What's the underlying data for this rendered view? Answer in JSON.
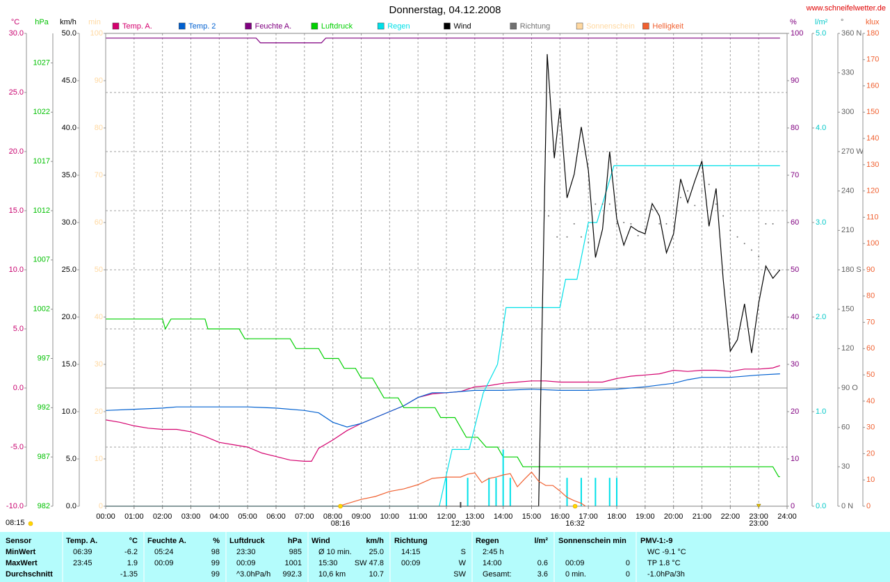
{
  "chart_data": {
    "type": "line",
    "title": "Donnerstag, 04.12.2008",
    "source": "www.schneifelwetter.de",
    "xlim": [
      0,
      24
    ],
    "xticks": [
      {
        "value": 0,
        "label": "00:00"
      },
      {
        "value": 1,
        "label": "01:00"
      },
      {
        "value": 2,
        "label": "02:00"
      },
      {
        "value": 3,
        "label": "03:00"
      },
      {
        "value": 4,
        "label": "04:00"
      },
      {
        "value": 5,
        "label": "05:00"
      },
      {
        "value": 6,
        "label": "06:00"
      },
      {
        "value": 7,
        "label": "07:00"
      },
      {
        "value": 8,
        "label": "08:00"
      },
      {
        "value": 9,
        "label": "09:00"
      },
      {
        "value": 10,
        "label": "10:00"
      },
      {
        "value": 11,
        "label": "11:00"
      },
      {
        "value": 12,
        "label": "12:00"
      },
      {
        "value": 13,
        "label": "13:00"
      },
      {
        "value": 14,
        "label": "14:00"
      },
      {
        "value": 15,
        "label": "15:00"
      },
      {
        "value": 16,
        "label": "16:00"
      },
      {
        "value": 17,
        "label": "17:00"
      },
      {
        "value": 18,
        "label": "18:00"
      },
      {
        "value": 19,
        "label": "19:00"
      },
      {
        "value": 20,
        "label": "20:00"
      },
      {
        "value": 21,
        "label": "21:00"
      },
      {
        "value": 22,
        "label": "22:00"
      },
      {
        "value": 23,
        "label": "23:00"
      },
      {
        "value": 24,
        "label": "24:00"
      }
    ],
    "grid": true,
    "grid_axis": "temp",
    "zero_line": true,
    "axes": [
      {
        "id": "temp",
        "side": "left",
        "title": "°C",
        "color": "#c8006e",
        "lim": [
          -10,
          30
        ],
        "ticks": [
          {
            "value": -10,
            "label": "-10.0"
          },
          {
            "value": -5,
            "label": "-5.0"
          },
          {
            "value": 0,
            "label": "0.0"
          },
          {
            "value": 5,
            "label": "5.0"
          },
          {
            "value": 10,
            "label": "10.0"
          },
          {
            "value": 15,
            "label": "15.0"
          },
          {
            "value": 20,
            "label": "20.0"
          },
          {
            "value": 25,
            "label": "25.0"
          },
          {
            "value": 30,
            "label": "30.0"
          }
        ]
      },
      {
        "id": "pressure",
        "side": "left",
        "title": "hPa",
        "color": "#00c000",
        "lim": [
          982,
          1030
        ],
        "ticks": [
          982,
          987,
          992,
          997,
          1002,
          1007,
          1012,
          1017,
          1022,
          1027
        ]
      },
      {
        "id": "wind",
        "side": "left",
        "title": "km/h",
        "color": "#000000",
        "lim": [
          0,
          50
        ],
        "ticks": [
          {
            "value": 0,
            "label": "0.0"
          },
          {
            "value": 5,
            "label": "5.0"
          },
          {
            "value": 10,
            "label": "10.0"
          },
          {
            "value": 15,
            "label": "15.0"
          },
          {
            "value": 20,
            "label": "20.0"
          },
          {
            "value": 25,
            "label": "25.0"
          },
          {
            "value": 30,
            "label": "30.0"
          },
          {
            "value": 35,
            "label": "35.0"
          },
          {
            "value": 40,
            "label": "40.0"
          },
          {
            "value": 45,
            "label": "45.0"
          },
          {
            "value": 50,
            "label": "50.0"
          }
        ]
      },
      {
        "id": "sun",
        "side": "left",
        "title": "min",
        "color": "#ffd8a0",
        "lim": [
          0,
          100
        ],
        "ticks": [
          0,
          10,
          20,
          30,
          40,
          50,
          60,
          70,
          80,
          90,
          100
        ]
      },
      {
        "id": "humidity",
        "side": "right",
        "title": "%",
        "color": "#800080",
        "lim": [
          0,
          100
        ],
        "ticks": [
          0,
          10,
          20,
          30,
          40,
          50,
          60,
          70,
          80,
          90,
          100
        ]
      },
      {
        "id": "rain",
        "side": "right",
        "title": "l/m²",
        "color": "#00c8c8",
        "lim": [
          0,
          5
        ],
        "ticks": [
          {
            "value": 0,
            "label": "0.0"
          },
          {
            "value": 1,
            "label": "1.0"
          },
          {
            "value": 2,
            "label": "2.0"
          },
          {
            "value": 3,
            "label": "3.0"
          },
          {
            "value": 4,
            "label": "4.0"
          },
          {
            "value": 5,
            "label": "5.0"
          }
        ]
      },
      {
        "id": "direction",
        "side": "right",
        "title": "°",
        "color": "#606060",
        "lim": [
          0,
          360
        ],
        "ticks": [
          {
            "value": 0,
            "label": "0 N"
          },
          30,
          60,
          {
            "value": 90,
            "label": "90 O"
          },
          120,
          150,
          {
            "value": 180,
            "label": "180 S"
          },
          210,
          240,
          {
            "value": 270,
            "label": "270 W"
          },
          300,
          330,
          {
            "value": 360,
            "label": "360 N"
          }
        ]
      },
      {
        "id": "light",
        "side": "right",
        "title": "klux",
        "color": "#f06030",
        "lim": [
          0,
          180
        ],
        "ticks": [
          0,
          10,
          20,
          30,
          40,
          50,
          60,
          70,
          80,
          90,
          100,
          110,
          120,
          130,
          140,
          150,
          160,
          170,
          180
        ]
      }
    ],
    "series": [
      {
        "name": "Temp. A.",
        "color": "#d4006e",
        "axis": "temp",
        "style": "line",
        "x": [
          0,
          0.5,
          1,
          1.5,
          2,
          2.5,
          3,
          3.5,
          4,
          4.5,
          5,
          5.5,
          6,
          6.5,
          7,
          7.25,
          7.5,
          8,
          8.5,
          9,
          9.5,
          10,
          10.5,
          11,
          11.5,
          12,
          12.5,
          13,
          13.5,
          14,
          14.5,
          15,
          15.5,
          16,
          16.5,
          17,
          17.5,
          18,
          18.5,
          19,
          19.5,
          20,
          20.5,
          21,
          21.5,
          22,
          22.5,
          23,
          23.5,
          23.75
        ],
        "values": [
          -2.7,
          -2.9,
          -3.2,
          -3.4,
          -3.5,
          -3.5,
          -3.7,
          -4.1,
          -4.6,
          -4.8,
          -5.0,
          -5.5,
          -5.8,
          -6.1,
          -6.2,
          -6.2,
          -5.1,
          -4.4,
          -3.6,
          -3.0,
          -2.5,
          -2.0,
          -1.5,
          -0.8,
          -0.5,
          -0.4,
          -0.3,
          0.1,
          0.2,
          0.4,
          0.5,
          0.6,
          0.6,
          0.5,
          0.5,
          0.5,
          0.5,
          0.8,
          1.0,
          1.1,
          1.2,
          1.5,
          1.4,
          1.5,
          1.5,
          1.4,
          1.6,
          1.6,
          1.7,
          1.9
        ]
      },
      {
        "name": "Temp. 2",
        "color": "#0060d0",
        "axis": "temp",
        "style": "line",
        "x": [
          0,
          1,
          2,
          2.5,
          3,
          4,
          5,
          6,
          7,
          7.5,
          8,
          8.5,
          9,
          9.5,
          10,
          10.5,
          11,
          11.5,
          12,
          13,
          14,
          15,
          16,
          17,
          18,
          19,
          20,
          20.5,
          21,
          22,
          23,
          23.75
        ],
        "values": [
          -1.9,
          -1.8,
          -1.7,
          -1.6,
          -1.6,
          -1.6,
          -1.6,
          -1.7,
          -1.9,
          -2.1,
          -2.9,
          -3.3,
          -3.0,
          -2.5,
          -2.0,
          -1.5,
          -0.8,
          -0.4,
          -0.4,
          -0.2,
          -0.2,
          -0.1,
          -0.2,
          -0.2,
          -0.1,
          0.1,
          0.4,
          0.7,
          0.9,
          0.9,
          1.1,
          1.2
        ]
      },
      {
        "name": "Feuchte A.",
        "color": "#800080",
        "axis": "humidity",
        "style": "line",
        "x": [
          0,
          5.3,
          5.45,
          7.6,
          7.75,
          23.75
        ],
        "values": [
          99,
          99,
          98,
          98,
          99,
          99
        ]
      },
      {
        "name": "Luftdruck",
        "color": "#00d000",
        "axis": "pressure",
        "style": "line",
        "x": [
          0,
          2,
          2.1,
          2.3,
          3.5,
          3.6,
          4.7,
          4.9,
          6.5,
          6.7,
          7.5,
          7.7,
          8.2,
          8.4,
          8.8,
          9,
          9.4,
          9.8,
          10.3,
          10.5,
          11.6,
          11.8,
          12.3,
          12.7,
          13.1,
          13.4,
          13.8,
          14,
          14.5,
          14.7,
          23.5,
          23.7,
          23.75
        ],
        "values": [
          1001,
          1001,
          1000,
          1001,
          1001,
          1000,
          1000,
          999,
          999,
          998,
          998,
          997,
          997,
          996,
          996,
          995,
          995,
          993,
          993,
          992,
          992,
          991,
          991,
          989,
          989,
          988,
          988,
          987,
          987,
          986,
          986,
          985,
          985
        ]
      },
      {
        "name": "Regen",
        "color": "#00e0e8",
        "axis": "rain",
        "style": "line",
        "x": [
          0,
          11.75,
          12.2,
          12.8,
          13.3,
          13.8,
          14.1,
          16.0,
          16.2,
          16.6,
          16.8,
          17.0,
          17.3,
          17.6,
          17.9,
          23.75
        ],
        "values": [
          0,
          0,
          0.6,
          0.6,
          1.2,
          1.5,
          2.1,
          2.1,
          2.4,
          2.4,
          2.7,
          3.0,
          3.0,
          3.3,
          3.6,
          3.6
        ],
        "rates": {
          "x": [
            12,
            12.75,
            13.5,
            13.75,
            14,
            14.25,
            16.25,
            16.75,
            17.25,
            17.75,
            18
          ],
          "values": [
            0.3,
            0.3,
            0.3,
            0.3,
            0.6,
            0.3,
            0.3,
            0.3,
            0.3,
            0.3,
            0.3
          ]
        }
      },
      {
        "name": "Wind",
        "color": "#000000",
        "axis": "wind",
        "style": "line",
        "x": [
          0,
          15.25,
          15.55,
          15.8,
          16,
          16.25,
          16.5,
          16.75,
          17,
          17.25,
          17.5,
          17.75,
          18,
          18.25,
          18.5,
          18.75,
          19,
          19.25,
          19.5,
          19.75,
          20,
          20.25,
          20.5,
          20.75,
          21,
          21.25,
          21.5,
          21.75,
          22,
          22.25,
          22.5,
          22.75,
          23,
          23.25,
          23.5,
          23.75
        ],
        "values": [
          0,
          0,
          47.8,
          36.8,
          42.1,
          32.6,
          35.1,
          40.1,
          35.5,
          26.3,
          29.3,
          37.5,
          30.4,
          27.6,
          29.6,
          29.1,
          28.8,
          32.0,
          30.7,
          26.8,
          28.8,
          34.6,
          32.1,
          34.4,
          36.5,
          29.6,
          33.6,
          24.0,
          16.4,
          17.6,
          21.4,
          16.2,
          21.5,
          25.4,
          24.1,
          25.0
        ]
      },
      {
        "name": "Richtung",
        "color": "#707070",
        "axis": "direction",
        "style": "dots",
        "x": [
          15.6,
          15.9,
          16.25,
          16.5,
          16.75,
          17,
          17.25,
          17.5,
          17.75,
          18,
          18.25,
          18.5,
          18.75,
          19,
          19.25,
          19.5,
          19.75,
          20.25,
          20.5,
          20.75,
          21,
          21.25,
          21.5,
          21.75,
          22,
          22.25,
          22.5,
          22.75,
          23,
          23.25,
          23.5
        ],
        "values": [
          221,
          205,
          205,
          215,
          205,
          201,
          230,
          230,
          230,
          215,
          216,
          215,
          206,
          211,
          226,
          215,
          215,
          235,
          240,
          229,
          240,
          245,
          230,
          221,
          210,
          205,
          200,
          195,
          190,
          215,
          215
        ]
      },
      {
        "name": "Sonnenschein",
        "color": "#ffd8a0",
        "axis": "sun",
        "style": "line",
        "x": [],
        "values": []
      },
      {
        "name": "Helligkeit",
        "color": "#f06030",
        "axis": "light",
        "style": "line",
        "x": [
          8.2,
          8.6,
          9,
          9.5,
          10,
          10.5,
          11,
          11.5,
          12,
          12.5,
          12.75,
          13,
          13.25,
          13.5,
          13.75,
          14,
          14.25,
          14.5,
          14.75,
          15,
          15.25,
          15.5,
          15.75,
          16,
          16.25,
          16.5,
          16.75,
          16.9
        ],
        "values": [
          0,
          1.3,
          2.6,
          3.7,
          5.6,
          6.6,
          8.2,
          10.6,
          11.1,
          11.1,
          12.2,
          12.7,
          9.0,
          10.6,
          11.1,
          11.9,
          12.4,
          7.4,
          10.3,
          13.0,
          9.5,
          7.9,
          7.9,
          5.8,
          3.4,
          2.1,
          1.1,
          0
        ]
      }
    ],
    "events": [
      {
        "label": "08:16",
        "x": 8.267,
        "icon": "sun"
      },
      {
        "label": "12:30",
        "x": 12.5,
        "icon": "noon"
      },
      {
        "label": "16:32",
        "x": 16.533,
        "icon": "sun"
      },
      {
        "label": "23:00",
        "x": 23,
        "icon": "moon"
      }
    ],
    "corner_note": {
      "label": "08:15",
      "icon": "sun"
    }
  },
  "stats_table": {
    "corner": "Sensor",
    "columns": [
      {
        "title": "Temp. A.",
        "unit": "°C"
      },
      {
        "title": "Feuchte A.",
        "unit": "%"
      },
      {
        "title": "Luftdruck",
        "unit": "hPa"
      },
      {
        "title": "Wind",
        "unit": "km/h"
      },
      {
        "title": "Richtung"
      },
      {
        "title": "Regen",
        "unit": "l/m²"
      },
      {
        "title": "Sonnenschein min"
      },
      {
        "title": "PMV-1:-9"
      }
    ],
    "rows": [
      {
        "label": "MinWert",
        "cells": [
          {
            "left": "06:39",
            "right": "-6.2"
          },
          {
            "left": "05:24",
            "right": "98"
          },
          {
            "left": "23:30",
            "right": "985"
          },
          {
            "left": "Ø 10 min.",
            "right": "25.0"
          },
          {
            "left": "14:15",
            "right": "S"
          },
          {
            "left": "2:45 h"
          },
          {},
          {
            "left": "WC -9.1 °C"
          }
        ]
      },
      {
        "label": "MaxWert",
        "cells": [
          {
            "left": "23:45",
            "right": "1.9"
          },
          {
            "left": "00:09",
            "right": "99"
          },
          {
            "left": "00:09",
            "right": "1001"
          },
          {
            "left": "15:30",
            "right": "SW 47.8"
          },
          {
            "left": "00:09",
            "right": "W"
          },
          {
            "left": "14:00",
            "right": "0.6"
          },
          {
            "left": "00:09",
            "right": "0"
          },
          {
            "left": "TP 1.8 °C"
          }
        ]
      },
      {
        "label": "Durchschnitt",
        "cells": [
          {
            "right": "-1.35"
          },
          {
            "right": "99"
          },
          {
            "left": "^3.0hPa/h",
            "right": "992.3"
          },
          {
            "left": "10,6 km",
            "right": "10.7"
          },
          {
            "right": "SW"
          },
          {
            "left": "Gesamt:",
            "right": "3.6"
          },
          {
            "left": "0 min.",
            "right": "0"
          },
          {
            "left": "-1.0hPa/3h"
          }
        ]
      }
    ]
  }
}
